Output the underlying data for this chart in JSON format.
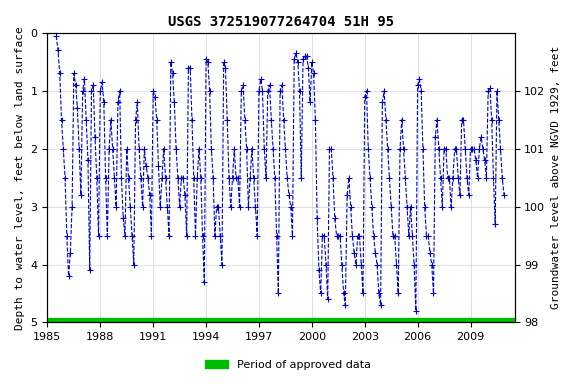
{
  "title": "USGS 372519077264704 51H 95",
  "xlabel": "",
  "ylabel_left": "Depth to water level, feet below land surface",
  "ylabel_right": "Groundwater level above NGVD 1929, feet",
  "ylim_left": [
    5.0,
    0.0
  ],
  "ylim_right": [
    98.0,
    103.0
  ],
  "xlim": [
    1985,
    2011.5
  ],
  "xticks": [
    1985,
    1988,
    1991,
    1994,
    1997,
    2000,
    2003,
    2006,
    2009
  ],
  "yticks_left": [
    0.0,
    1.0,
    2.0,
    3.0,
    4.0,
    5.0
  ],
  "yticks_right": [
    98.0,
    99.0,
    100.0,
    101.0,
    102.0
  ],
  "line_color": "#0000CC",
  "line_style": "--",
  "marker": "+",
  "legend_label": "Period of approved data",
  "legend_color": "#00BB00",
  "background_color": "#ffffff",
  "title_fontsize": 10,
  "axis_label_fontsize": 8,
  "tick_fontsize": 8,
  "data_x": [
    1985.5,
    1985.6,
    1985.7,
    1985.8,
    1985.9,
    1986.0,
    1986.1,
    1986.2,
    1986.3,
    1986.4,
    1986.5,
    1986.6,
    1986.7,
    1986.8,
    1986.9,
    1987.0,
    1987.1,
    1987.2,
    1987.3,
    1987.4,
    1987.5,
    1987.6,
    1987.7,
    1987.8,
    1987.9,
    1988.0,
    1988.1,
    1988.2,
    1988.3,
    1988.4,
    1988.5,
    1988.6,
    1988.7,
    1988.8,
    1988.9,
    1989.0,
    1989.1,
    1989.2,
    1989.3,
    1989.4,
    1989.5,
    1989.6,
    1989.7,
    1989.8,
    1989.9,
    1990.0,
    1990.1,
    1990.2,
    1990.3,
    1990.4,
    1990.5,
    1990.6,
    1990.7,
    1990.8,
    1990.9,
    1991.0,
    1991.1,
    1991.2,
    1991.3,
    1991.4,
    1991.5,
    1991.6,
    1991.7,
    1991.8,
    1991.9,
    1992.0,
    1992.1,
    1992.2,
    1992.3,
    1992.4,
    1992.5,
    1992.6,
    1992.7,
    1992.8,
    1992.9,
    1993.0,
    1993.1,
    1993.2,
    1993.3,
    1993.4,
    1993.5,
    1993.6,
    1993.7,
    1993.8,
    1993.9,
    1994.0,
    1994.1,
    1994.2,
    1994.3,
    1994.4,
    1994.5,
    1994.6,
    1994.7,
    1994.8,
    1994.9,
    1995.0,
    1995.1,
    1995.2,
    1995.3,
    1995.4,
    1995.5,
    1995.6,
    1995.7,
    1995.8,
    1995.9,
    1996.0,
    1996.1,
    1996.2,
    1996.3,
    1996.4,
    1996.5,
    1996.6,
    1996.7,
    1996.8,
    1996.9,
    1997.0,
    1997.1,
    1997.2,
    1997.3,
    1997.4,
    1997.5,
    1997.6,
    1997.7,
    1997.8,
    1997.9,
    1998.0,
    1998.1,
    1998.2,
    1998.3,
    1998.4,
    1998.5,
    1998.6,
    1998.7,
    1998.8,
    1998.9,
    1999.0,
    1999.1,
    1999.2,
    1999.3,
    1999.4,
    1999.5,
    1999.6,
    1999.7,
    1999.8,
    1999.9,
    2000.0,
    2000.1,
    2000.2,
    2000.3,
    2000.4,
    2000.5,
    2000.6,
    2000.7,
    2000.8,
    2000.9,
    2001.0,
    2001.1,
    2001.2,
    2001.3,
    2001.4,
    2001.5,
    2001.6,
    2001.7,
    2001.8,
    2001.9,
    2002.0,
    2002.1,
    2002.2,
    2002.3,
    2002.4,
    2002.5,
    2002.6,
    2002.7,
    2002.8,
    2002.9,
    2003.0,
    2003.1,
    2003.2,
    2003.3,
    2003.4,
    2003.5,
    2003.6,
    2003.7,
    2003.8,
    2003.9,
    2004.0,
    2004.1,
    2004.2,
    2004.3,
    2004.4,
    2004.5,
    2004.6,
    2004.7,
    2004.8,
    2004.9,
    2005.0,
    2005.1,
    2005.2,
    2005.3,
    2005.4,
    2005.5,
    2005.6,
    2005.7,
    2005.8,
    2005.9,
    2006.0,
    2006.1,
    2006.2,
    2006.3,
    2006.4,
    2006.5,
    2006.6,
    2006.7,
    2006.8,
    2006.9,
    2007.0,
    2007.1,
    2007.2,
    2007.3,
    2007.4,
    2007.5,
    2007.6,
    2007.7,
    2007.8,
    2007.9,
    2008.0,
    2008.1,
    2008.2,
    2008.3,
    2008.4,
    2008.5,
    2008.6,
    2008.7,
    2008.8,
    2008.9,
    2009.0,
    2009.1,
    2009.2,
    2009.3,
    2009.4,
    2009.5,
    2009.6,
    2009.7,
    2009.8,
    2009.9,
    2010.0,
    2010.1,
    2010.2,
    2010.3,
    2010.4,
    2010.5,
    2010.6,
    2010.7,
    2010.8,
    2010.9
  ],
  "data_y": [
    0.05,
    0.3,
    0.7,
    1.5,
    2.0,
    2.5,
    3.5,
    4.2,
    3.8,
    3.0,
    0.7,
    0.9,
    1.3,
    2.0,
    2.8,
    1.0,
    0.8,
    1.5,
    2.2,
    4.1,
    1.0,
    0.9,
    1.8,
    2.5,
    3.5,
    1.0,
    0.85,
    1.2,
    2.5,
    3.5,
    2.0,
    1.5,
    2.0,
    2.5,
    3.0,
    1.2,
    1.0,
    2.5,
    3.2,
    3.5,
    2.0,
    2.5,
    3.0,
    3.5,
    4.0,
    1.5,
    1.2,
    2.0,
    2.5,
    3.0,
    2.0,
    2.3,
    2.5,
    2.8,
    3.5,
    1.0,
    1.1,
    1.5,
    2.3,
    3.0,
    2.5,
    2.0,
    2.5,
    3.0,
    3.5,
    0.5,
    0.7,
    1.2,
    2.0,
    2.5,
    3.0,
    2.5,
    2.5,
    2.8,
    3.5,
    0.6,
    0.6,
    1.5,
    2.5,
    3.5,
    2.5,
    2.0,
    2.5,
    3.5,
    4.3,
    0.45,
    0.5,
    1.0,
    2.0,
    2.5,
    3.5,
    3.0,
    3.0,
    3.5,
    4.0,
    0.5,
    0.6,
    1.5,
    2.5,
    3.0,
    2.5,
    2.0,
    2.5,
    2.5,
    3.0,
    1.0,
    0.9,
    1.5,
    2.0,
    3.0,
    2.5,
    2.0,
    2.5,
    3.0,
    3.5,
    1.0,
    0.8,
    1.0,
    2.0,
    2.5,
    1.0,
    0.9,
    1.5,
    2.0,
    2.5,
    3.5,
    4.5,
    1.0,
    0.9,
    1.5,
    2.0,
    2.5,
    2.8,
    3.0,
    3.5,
    0.45,
    0.35,
    0.5,
    1.0,
    2.5,
    0.45,
    0.4,
    0.4,
    0.6,
    1.2,
    0.5,
    0.7,
    1.5,
    3.2,
    4.1,
    4.5,
    3.5,
    3.5,
    4.0,
    4.6,
    2.0,
    2.0,
    2.5,
    3.2,
    3.5,
    3.5,
    3.5,
    4.0,
    4.5,
    4.7,
    2.8,
    2.5,
    3.0,
    3.5,
    3.8,
    4.0,
    3.5,
    3.5,
    4.0,
    4.5,
    1.1,
    1.0,
    2.0,
    2.5,
    3.0,
    3.5,
    3.8,
    4.0,
    4.5,
    4.7,
    1.2,
    1.0,
    1.5,
    2.0,
    2.5,
    3.0,
    3.5,
    3.5,
    4.0,
    4.5,
    2.0,
    1.5,
    2.0,
    2.5,
    3.0,
    3.5,
    3.0,
    3.5,
    4.0,
    4.8,
    0.9,
    0.8,
    1.0,
    2.0,
    3.0,
    3.5,
    3.5,
    3.8,
    4.0,
    4.5,
    1.8,
    1.5,
    2.0,
    2.5,
    3.0,
    2.0,
    2.0,
    2.5,
    2.5,
    3.0,
    2.5,
    2.0,
    2.0,
    2.5,
    2.8,
    1.5,
    1.5,
    2.0,
    2.5,
    2.8,
    2.0,
    2.0,
    2.0,
    2.2,
    2.5,
    2.0,
    1.8,
    2.0,
    2.2,
    2.5,
    1.0,
    0.95,
    1.5,
    2.5,
    3.3,
    1.0,
    1.5,
    2.0,
    2.5,
    2.8
  ],
  "approved_y": 5.0
}
